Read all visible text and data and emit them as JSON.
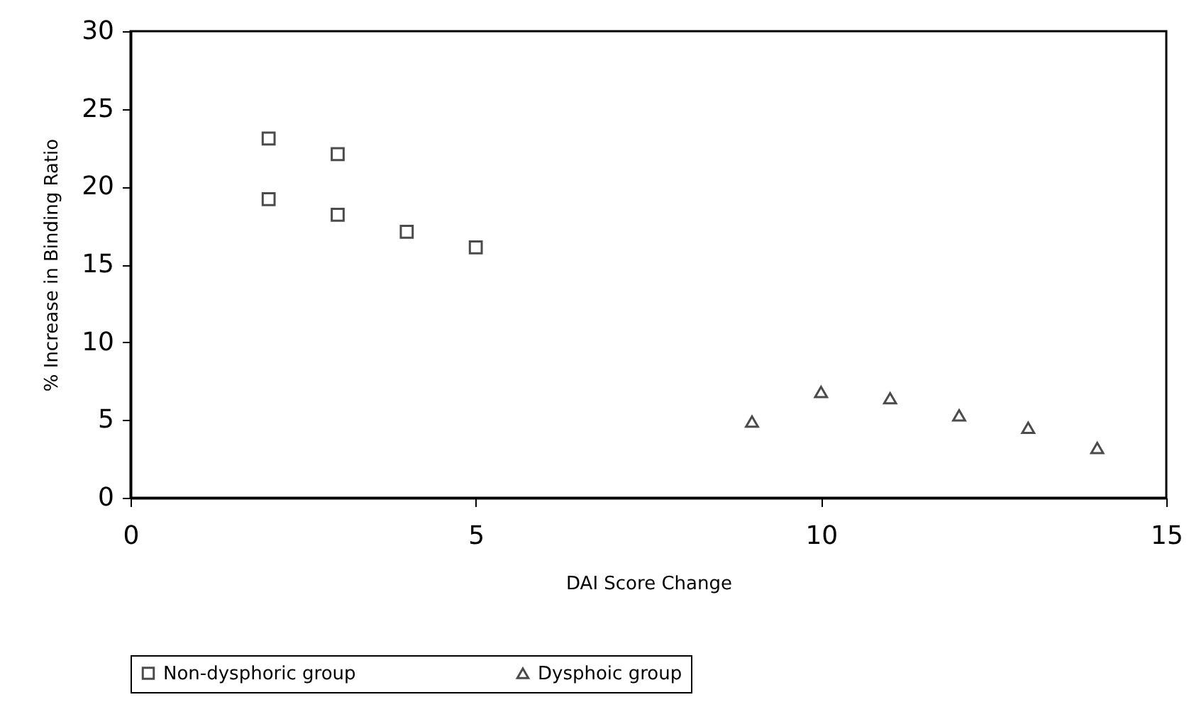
{
  "chart_data": {
    "type": "scatter",
    "xlabel": "DAI Score Change",
    "ylabel": "% Increase in Binding Ratio",
    "xlim": [
      0,
      15
    ],
    "xticks": [
      0,
      5,
      10,
      15
    ],
    "ylim": [
      0,
      30
    ],
    "yticks": [
      0,
      5,
      10,
      15,
      20,
      25,
      30
    ],
    "grid": false,
    "legend": "bottom",
    "series": [
      {
        "name": "Non-dysphoric group",
        "color": "#000000",
        "marker": "square",
        "x": [
          2,
          2,
          3,
          3,
          4,
          5
        ],
        "values": [
          23.1,
          19.2,
          22.1,
          18.2,
          17.1,
          16.1
        ]
      },
      {
        "name": "Dysphoic group",
        "color": "#000000",
        "marker": "triangle",
        "x": [
          9,
          10,
          11,
          12,
          13,
          14
        ],
        "values": [
          4.9,
          6.8,
          6.4,
          5.3,
          4.5,
          3.2
        ]
      }
    ]
  }
}
